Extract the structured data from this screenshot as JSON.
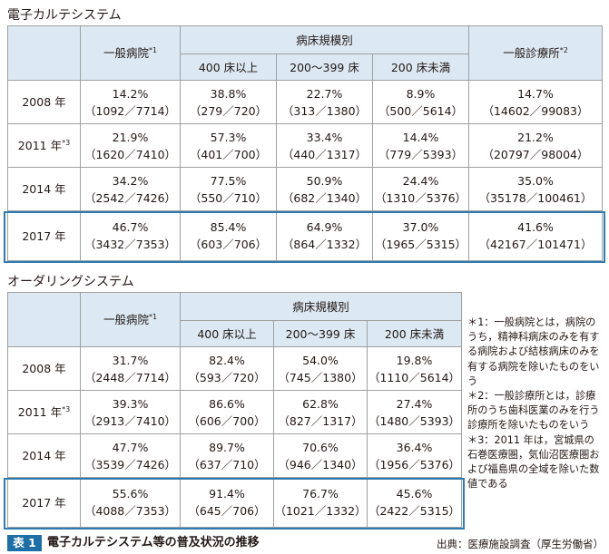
{
  "table1": {
    "title": "電子カルテシステム",
    "headers": {
      "general_hospital": "一般病院",
      "general_hospital_note": "*1",
      "bed_scale": "病床規模別",
      "bed_400": "400 床以上",
      "bed_200_399": "200～399 床",
      "bed_under_200": "200 床未満",
      "general_clinic": "一般診療所",
      "general_clinic_note": "*2"
    },
    "rows": [
      {
        "year": "2008 年",
        "note": "",
        "cells": [
          {
            "pct": "14.2%",
            "ratio": "（1092／7714）"
          },
          {
            "pct": "38.8%",
            "ratio": "（279／720）"
          },
          {
            "pct": "22.7%",
            "ratio": "（313／1380）"
          },
          {
            "pct": "8.9%",
            "ratio": "（500／5614）"
          },
          {
            "pct": "14.7%",
            "ratio": "（14602／99083）"
          }
        ]
      },
      {
        "year": "2011 年",
        "note": "*3",
        "cells": [
          {
            "pct": "21.9%",
            "ratio": "（1620／7410）"
          },
          {
            "pct": "57.3%",
            "ratio": "（401／700）"
          },
          {
            "pct": "33.4%",
            "ratio": "（440／1317）"
          },
          {
            "pct": "14.4%",
            "ratio": "（779／5393）"
          },
          {
            "pct": "21.2%",
            "ratio": "（20797／98004）"
          }
        ]
      },
      {
        "year": "2014 年",
        "note": "",
        "cells": [
          {
            "pct": "34.2%",
            "ratio": "（2542／7426）"
          },
          {
            "pct": "77.5%",
            "ratio": "（550／710）"
          },
          {
            "pct": "50.9%",
            "ratio": "（682／1340）"
          },
          {
            "pct": "24.4%",
            "ratio": "（1310／5376）"
          },
          {
            "pct": "35.0%",
            "ratio": "（35178／100461）"
          }
        ]
      },
      {
        "year": "2017 年",
        "note": "",
        "cells": [
          {
            "pct": "46.7%",
            "ratio": "（3432／7353）"
          },
          {
            "pct": "85.4%",
            "ratio": "（603／706）"
          },
          {
            "pct": "64.9%",
            "ratio": "（864／1332）"
          },
          {
            "pct": "37.0%",
            "ratio": "（1965／5315）"
          },
          {
            "pct": "41.6%",
            "ratio": "（42167／101471）"
          }
        ]
      }
    ]
  },
  "table2": {
    "title": "オーダリングシステム",
    "headers": {
      "general_hospital": "一般病院",
      "general_hospital_note": "*1",
      "bed_scale": "病床規模別",
      "bed_400": "400 床以上",
      "bed_200_399": "200～399 床",
      "bed_under_200": "200 床未満"
    },
    "rows": [
      {
        "year": "2008 年",
        "note": "",
        "cells": [
          {
            "pct": "31.7%",
            "ratio": "（2448／7714）"
          },
          {
            "pct": "82.4%",
            "ratio": "（593／720）"
          },
          {
            "pct": "54.0%",
            "ratio": "（745／1380）"
          },
          {
            "pct": "19.8%",
            "ratio": "（1110／5614）"
          }
        ]
      },
      {
        "year": "2011 年",
        "note": "*3",
        "cells": [
          {
            "pct": "39.3%",
            "ratio": "（2913／7410）"
          },
          {
            "pct": "86.6%",
            "ratio": "（606／700）"
          },
          {
            "pct": "62.8%",
            "ratio": "（827／1317）"
          },
          {
            "pct": "27.4%",
            "ratio": "（1480／5393）"
          }
        ]
      },
      {
        "year": "2014 年",
        "note": "",
        "cells": [
          {
            "pct": "47.7%",
            "ratio": "（3539／7426）"
          },
          {
            "pct": "89.7%",
            "ratio": "（637／710）"
          },
          {
            "pct": "70.6%",
            "ratio": "（946／1340）"
          },
          {
            "pct": "36.4%",
            "ratio": "（1956／5376）"
          }
        ]
      },
      {
        "year": "2017 年",
        "note": "",
        "cells": [
          {
            "pct": "55.6%",
            "ratio": "（4088／7353）"
          },
          {
            "pct": "91.4%",
            "ratio": "（645／706）"
          },
          {
            "pct": "76.7%",
            "ratio": "（1021／1332）"
          },
          {
            "pct": "45.6%",
            "ratio": "（2422／5315）"
          }
        ]
      }
    ]
  },
  "notes": [
    "＊1：一般病院とは，病院のうち，精神科病床のみを有する病院および結核病床のみを有する病院を除いたものをいう",
    "＊2：一般診療所とは，診療所のうち歯科医業のみを行う診療所を除いたものをいう",
    "＊3：2011 年は，宮城県の石巻医療圏，気仙沼医療圏および福島県の全域を除いた数値である"
  ],
  "caption": {
    "badge": "表 1",
    "text": "電子カルテシステム等の普及状況の推移",
    "source": "出典：医療施設調査（厚生労働省）"
  },
  "colors": {
    "header_bg": "#dce9f3",
    "highlight_border": "#2f7bb0",
    "badge_bg": "#1e6fa7",
    "grid": "#9fa0a0"
  }
}
